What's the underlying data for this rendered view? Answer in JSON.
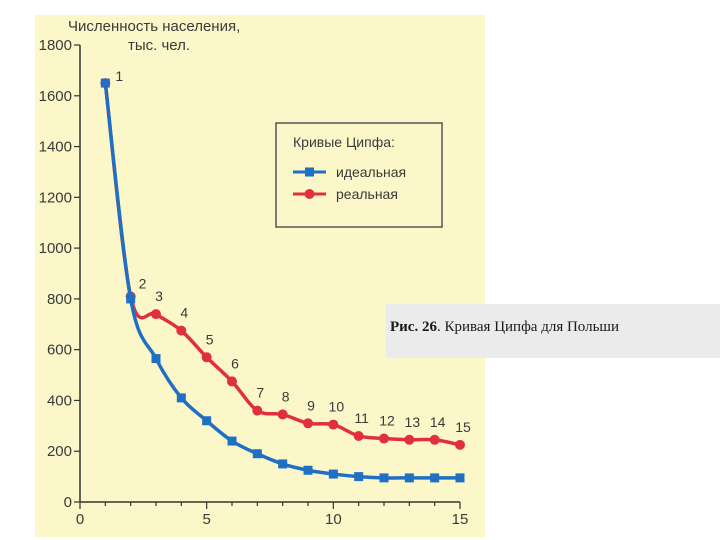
{
  "caption": {
    "label": "Рис. 26",
    "text": ". Кривая Ципфа для Польши"
  },
  "chart_data": {
    "type": "line",
    "ylabel_line1": "Численность населения,",
    "ylabel_line2": "тыс. чел.",
    "xlim": [
      0,
      15
    ],
    "ylim": [
      0,
      1800
    ],
    "xticks": [
      0,
      5,
      10,
      15
    ],
    "yticks": [
      0,
      200,
      400,
      600,
      800,
      1000,
      1200,
      1400,
      1600,
      1800
    ],
    "grid": false,
    "legend": {
      "title": "Кривые Ципфа:",
      "position": "upper-right"
    },
    "point_labels": [
      "1",
      "2",
      "3",
      "4",
      "5",
      "6",
      "7",
      "8",
      "9",
      "10",
      "11",
      "12",
      "13",
      "14",
      "15"
    ],
    "series": [
      {
        "name": "идеальная",
        "color": "#1f6fc4",
        "marker": "square",
        "x": [
          1,
          2,
          3,
          4,
          5,
          6,
          7,
          8,
          9,
          10,
          11,
          12,
          13,
          14,
          15
        ],
        "y": [
          1650,
          800,
          565,
          410,
          320,
          240,
          190,
          150,
          125,
          110,
          100,
          95,
          95,
          95,
          95
        ]
      },
      {
        "name": "реальная",
        "color": "#e03040",
        "marker": "circle",
        "x": [
          1,
          2,
          3,
          4,
          5,
          6,
          7,
          8,
          9,
          10,
          11,
          12,
          13,
          14,
          15
        ],
        "y": [
          1650,
          810,
          740,
          675,
          570,
          475,
          360,
          345,
          310,
          305,
          260,
          250,
          245,
          245,
          225
        ]
      }
    ]
  }
}
